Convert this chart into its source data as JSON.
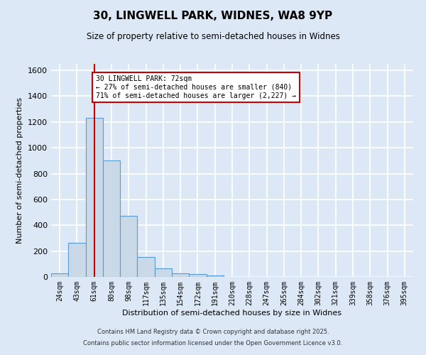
{
  "title_line1": "30, LINGWELL PARK, WIDNES, WA8 9YP",
  "title_line2": "Size of property relative to semi-detached houses in Widnes",
  "xlabel": "Distribution of semi-detached houses by size in Widnes",
  "ylabel": "Number of semi-detached properties",
  "categories": [
    "24sqm",
    "43sqm",
    "61sqm",
    "80sqm",
    "98sqm",
    "117sqm",
    "135sqm",
    "154sqm",
    "172sqm",
    "191sqm",
    "210sqm",
    "228sqm",
    "247sqm",
    "265sqm",
    "284sqm",
    "302sqm",
    "321sqm",
    "339sqm",
    "358sqm",
    "376sqm",
    "395sqm"
  ],
  "values": [
    25,
    265,
    1230,
    900,
    475,
    155,
    65,
    30,
    20,
    10,
    0,
    0,
    0,
    0,
    0,
    0,
    0,
    0,
    0,
    0,
    0
  ],
  "bar_color_fill": "#c9d9e8",
  "bar_color_edge": "#5b9bd5",
  "vline_x_idx": 2,
  "vline_color": "#cc0000",
  "annotation_text": "30 LINGWELL PARK: 72sqm\n← 27% of semi-detached houses are smaller (840)\n71% of semi-detached houses are larger (2,227) →",
  "annotation_box_color": "#ffffff",
  "annotation_box_edge": "#cc0000",
  "ylim": [
    0,
    1650
  ],
  "yticks": [
    0,
    200,
    400,
    600,
    800,
    1000,
    1200,
    1400,
    1600
  ],
  "background_color": "#dce8f5",
  "plot_bg_color": "#dce8f5",
  "grid_color": "#ffffff",
  "footer_line1": "Contains HM Land Registry data © Crown copyright and database right 2025.",
  "footer_line2": "Contains public sector information licensed under the Open Government Licence v3.0."
}
